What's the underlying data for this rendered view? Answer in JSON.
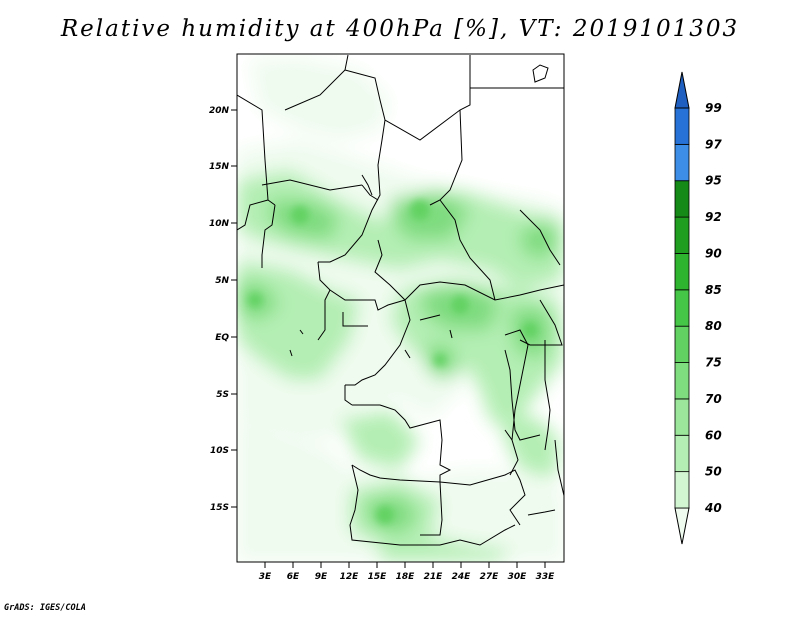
{
  "title": "Relative humidity at 400hPa [%], VT: 2019101303",
  "credit": "GrADS: IGES/COLA",
  "map": {
    "lat_labels": [
      "20N",
      "15N",
      "10N",
      "5N",
      "EQ",
      "5S",
      "10S",
      "15S"
    ],
    "lon_labels": [
      "3E",
      "6E",
      "9E",
      "12E",
      "15E",
      "18E",
      "21E",
      "24E",
      "27E",
      "30E",
      "33E"
    ]
  },
  "colorbar": {
    "levels": [
      "40",
      "50",
      "60",
      "70",
      "75",
      "80",
      "85",
      "90",
      "92",
      "95",
      "97",
      "99"
    ],
    "colors": [
      "#effbef",
      "#d2f5d2",
      "#b4eeb4",
      "#9be69b",
      "#7fdc7f",
      "#62d262",
      "#46c646",
      "#2fb42f",
      "#1f9e1f",
      "#168a16",
      "#3c8ee6",
      "#2672d6",
      "#1f5fc0"
    ]
  },
  "chart_data": {
    "type": "heatmap",
    "title": "Relative humidity at 400hPa [%], VT: 2019101303",
    "variable": "Relative humidity at 400hPa",
    "units": "%",
    "valid_time": "2019101303",
    "lon_range": [
      0,
      35
    ],
    "lat_range": [
      -20,
      24
    ],
    "contour_levels": [
      40,
      50,
      60,
      70,
      75,
      80,
      85,
      90,
      92,
      95,
      97,
      99
    ]
  }
}
